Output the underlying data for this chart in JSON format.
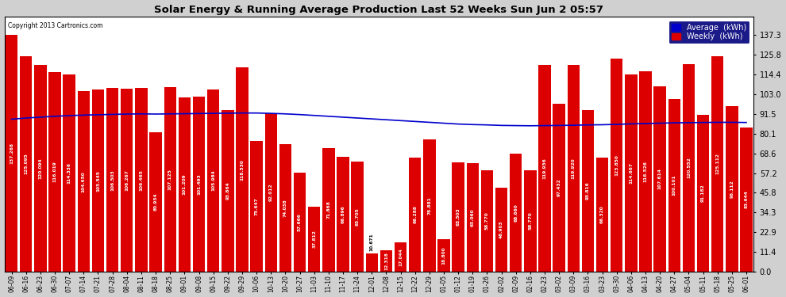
{
  "title": "Solar Energy & Running Average Production Last 52 Weeks Sun Jun 2 05:57",
  "copyright": "Copyright 2013 Cartronics.com",
  "bar_color": "#dd0000",
  "avg_line_color": "#0000cc",
  "background_color": "#d0d0d0",
  "plot_bg_color": "#ffffff",
  "grid_color": "#aaaaaa",
  "ylim": [
    0,
    148
  ],
  "yticks": [
    0.0,
    11.4,
    22.9,
    34.3,
    45.8,
    57.2,
    68.6,
    80.1,
    91.5,
    103.0,
    114.4,
    125.8,
    137.3
  ],
  "legend_avg_color": "#0000cc",
  "legend_weekly_color": "#dd0000",
  "categories": [
    "06-09",
    "06-16",
    "06-23",
    "06-30",
    "07-07",
    "07-14",
    "07-21",
    "07-28",
    "08-04",
    "08-11",
    "08-18",
    "08-25",
    "09-01",
    "09-08",
    "09-15",
    "09-22",
    "09-29",
    "10-06",
    "10-13",
    "10-20",
    "10-27",
    "11-03",
    "11-10",
    "11-17",
    "11-24",
    "12-01",
    "12-08",
    "12-15",
    "12-22",
    "12-29",
    "01-05",
    "01-12",
    "01-19",
    "01-26",
    "02-02",
    "02-09",
    "02-16",
    "02-23",
    "03-02",
    "03-09",
    "03-16",
    "03-23",
    "03-30",
    "04-06",
    "04-13",
    "04-20",
    "04-27",
    "05-04",
    "05-11",
    "05-18",
    "05-25",
    "06-01"
  ],
  "weekly_values": [
    137.268,
    125.095,
    120.094,
    116.019,
    114.336,
    104.65,
    105.545,
    106.503,
    106.267,
    106.465,
    80.934,
    107.125,
    101.209,
    101.493,
    105.984,
    93.864,
    118.53,
    75.647,
    92.012,
    74.038,
    57.666,
    37.812,
    71.868,
    66.896,
    63.705,
    10.671,
    12.318,
    17.044,
    66.288,
    76.881,
    18.8,
    63.503,
    63.06,
    58.77,
    48.903,
    68.66,
    58.77,
    119.936,
    97.432,
    119.92,
    93.816,
    66.32,
    123.85,
    114.667,
    116.526,
    107.614,
    100.101,
    120.552,
    91.182,
    125.112,
    96.112,
    83.644
  ],
  "avg_values": [
    88.5,
    89.2,
    89.7,
    90.2,
    90.6,
    90.9,
    91.1,
    91.3,
    91.5,
    91.6,
    91.5,
    91.6,
    91.7,
    91.8,
    91.9,
    92.0,
    92.1,
    92.1,
    91.9,
    91.6,
    91.2,
    90.7,
    90.2,
    89.7,
    89.2,
    88.7,
    88.2,
    87.7,
    87.2,
    86.7,
    86.2,
    85.7,
    85.4,
    85.2,
    84.9,
    84.8,
    84.7,
    84.8,
    84.9,
    85.0,
    85.2,
    85.3,
    85.5,
    85.8,
    86.0,
    86.2,
    86.4,
    86.5,
    86.6,
    86.7,
    86.7,
    86.6
  ]
}
